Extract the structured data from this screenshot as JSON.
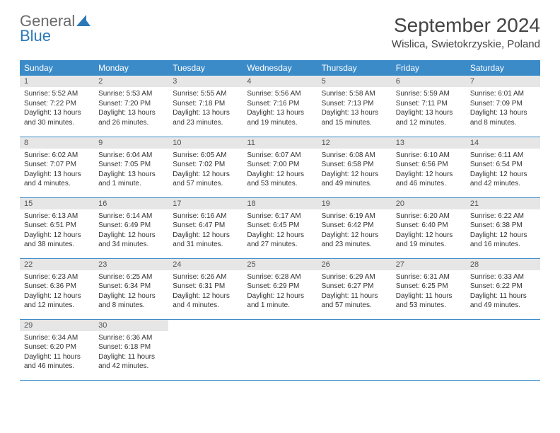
{
  "logo": {
    "word1": "General",
    "word2": "Blue"
  },
  "title": "September 2024",
  "location": "Wislica, Swietokrzyskie, Poland",
  "colors": {
    "header_bg": "#3b8bc9",
    "header_fg": "#ffffff",
    "daynum_bg": "#e6e6e6",
    "daynum_fg": "#555555",
    "border": "#3b8bc9",
    "logo_blue": "#2a78b8",
    "logo_gray": "#6a6a6a"
  },
  "weekdays": [
    "Sunday",
    "Monday",
    "Tuesday",
    "Wednesday",
    "Thursday",
    "Friday",
    "Saturday"
  ],
  "weeks": [
    [
      {
        "num": "1",
        "sunrise": "Sunrise: 5:52 AM",
        "sunset": "Sunset: 7:22 PM",
        "daylight": "Daylight: 13 hours and 30 minutes."
      },
      {
        "num": "2",
        "sunrise": "Sunrise: 5:53 AM",
        "sunset": "Sunset: 7:20 PM",
        "daylight": "Daylight: 13 hours and 26 minutes."
      },
      {
        "num": "3",
        "sunrise": "Sunrise: 5:55 AM",
        "sunset": "Sunset: 7:18 PM",
        "daylight": "Daylight: 13 hours and 23 minutes."
      },
      {
        "num": "4",
        "sunrise": "Sunrise: 5:56 AM",
        "sunset": "Sunset: 7:16 PM",
        "daylight": "Daylight: 13 hours and 19 minutes."
      },
      {
        "num": "5",
        "sunrise": "Sunrise: 5:58 AM",
        "sunset": "Sunset: 7:13 PM",
        "daylight": "Daylight: 13 hours and 15 minutes."
      },
      {
        "num": "6",
        "sunrise": "Sunrise: 5:59 AM",
        "sunset": "Sunset: 7:11 PM",
        "daylight": "Daylight: 13 hours and 12 minutes."
      },
      {
        "num": "7",
        "sunrise": "Sunrise: 6:01 AM",
        "sunset": "Sunset: 7:09 PM",
        "daylight": "Daylight: 13 hours and 8 minutes."
      }
    ],
    [
      {
        "num": "8",
        "sunrise": "Sunrise: 6:02 AM",
        "sunset": "Sunset: 7:07 PM",
        "daylight": "Daylight: 13 hours and 4 minutes."
      },
      {
        "num": "9",
        "sunrise": "Sunrise: 6:04 AM",
        "sunset": "Sunset: 7:05 PM",
        "daylight": "Daylight: 13 hours and 1 minute."
      },
      {
        "num": "10",
        "sunrise": "Sunrise: 6:05 AM",
        "sunset": "Sunset: 7:02 PM",
        "daylight": "Daylight: 12 hours and 57 minutes."
      },
      {
        "num": "11",
        "sunrise": "Sunrise: 6:07 AM",
        "sunset": "Sunset: 7:00 PM",
        "daylight": "Daylight: 12 hours and 53 minutes."
      },
      {
        "num": "12",
        "sunrise": "Sunrise: 6:08 AM",
        "sunset": "Sunset: 6:58 PM",
        "daylight": "Daylight: 12 hours and 49 minutes."
      },
      {
        "num": "13",
        "sunrise": "Sunrise: 6:10 AM",
        "sunset": "Sunset: 6:56 PM",
        "daylight": "Daylight: 12 hours and 46 minutes."
      },
      {
        "num": "14",
        "sunrise": "Sunrise: 6:11 AM",
        "sunset": "Sunset: 6:54 PM",
        "daylight": "Daylight: 12 hours and 42 minutes."
      }
    ],
    [
      {
        "num": "15",
        "sunrise": "Sunrise: 6:13 AM",
        "sunset": "Sunset: 6:51 PM",
        "daylight": "Daylight: 12 hours and 38 minutes."
      },
      {
        "num": "16",
        "sunrise": "Sunrise: 6:14 AM",
        "sunset": "Sunset: 6:49 PM",
        "daylight": "Daylight: 12 hours and 34 minutes."
      },
      {
        "num": "17",
        "sunrise": "Sunrise: 6:16 AM",
        "sunset": "Sunset: 6:47 PM",
        "daylight": "Daylight: 12 hours and 31 minutes."
      },
      {
        "num": "18",
        "sunrise": "Sunrise: 6:17 AM",
        "sunset": "Sunset: 6:45 PM",
        "daylight": "Daylight: 12 hours and 27 minutes."
      },
      {
        "num": "19",
        "sunrise": "Sunrise: 6:19 AM",
        "sunset": "Sunset: 6:42 PM",
        "daylight": "Daylight: 12 hours and 23 minutes."
      },
      {
        "num": "20",
        "sunrise": "Sunrise: 6:20 AM",
        "sunset": "Sunset: 6:40 PM",
        "daylight": "Daylight: 12 hours and 19 minutes."
      },
      {
        "num": "21",
        "sunrise": "Sunrise: 6:22 AM",
        "sunset": "Sunset: 6:38 PM",
        "daylight": "Daylight: 12 hours and 16 minutes."
      }
    ],
    [
      {
        "num": "22",
        "sunrise": "Sunrise: 6:23 AM",
        "sunset": "Sunset: 6:36 PM",
        "daylight": "Daylight: 12 hours and 12 minutes."
      },
      {
        "num": "23",
        "sunrise": "Sunrise: 6:25 AM",
        "sunset": "Sunset: 6:34 PM",
        "daylight": "Daylight: 12 hours and 8 minutes."
      },
      {
        "num": "24",
        "sunrise": "Sunrise: 6:26 AM",
        "sunset": "Sunset: 6:31 PM",
        "daylight": "Daylight: 12 hours and 4 minutes."
      },
      {
        "num": "25",
        "sunrise": "Sunrise: 6:28 AM",
        "sunset": "Sunset: 6:29 PM",
        "daylight": "Daylight: 12 hours and 1 minute."
      },
      {
        "num": "26",
        "sunrise": "Sunrise: 6:29 AM",
        "sunset": "Sunset: 6:27 PM",
        "daylight": "Daylight: 11 hours and 57 minutes."
      },
      {
        "num": "27",
        "sunrise": "Sunrise: 6:31 AM",
        "sunset": "Sunset: 6:25 PM",
        "daylight": "Daylight: 11 hours and 53 minutes."
      },
      {
        "num": "28",
        "sunrise": "Sunrise: 6:33 AM",
        "sunset": "Sunset: 6:22 PM",
        "daylight": "Daylight: 11 hours and 49 minutes."
      }
    ],
    [
      {
        "num": "29",
        "sunrise": "Sunrise: 6:34 AM",
        "sunset": "Sunset: 6:20 PM",
        "daylight": "Daylight: 11 hours and 46 minutes."
      },
      {
        "num": "30",
        "sunrise": "Sunrise: 6:36 AM",
        "sunset": "Sunset: 6:18 PM",
        "daylight": "Daylight: 11 hours and 42 minutes."
      },
      null,
      null,
      null,
      null,
      null
    ]
  ]
}
